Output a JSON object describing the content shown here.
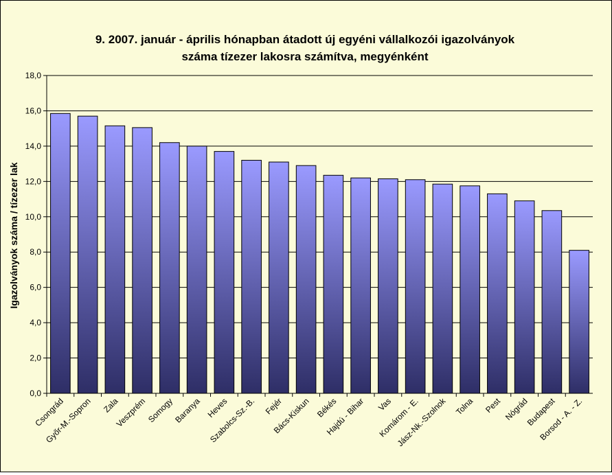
{
  "chart_data": {
    "type": "bar",
    "title_line1": "9.   2007. január - április hónapban átadott új egyéni vállalkozói  igazolványok",
    "title_line2": "száma tízezer lakosra számítva, megyénként",
    "xlabel": "",
    "ylabel": "Igazolványok száma / tízezer lak",
    "ylim": [
      0,
      18
    ],
    "ytick_step": 2,
    "ytick_labels": [
      "0,0",
      "2,0",
      "4,0",
      "6,0",
      "8,0",
      "10,0",
      "12,0",
      "14,0",
      "16,0",
      "18,0"
    ],
    "grid": true,
    "legend": "none",
    "bar_color_top": "#9a9aff",
    "bar_color_bottom": "#2e2e66",
    "plot_background": "#fbfbd9",
    "categories": [
      "Csongrád",
      "Győr-M.-Sopron",
      "Zala",
      "Veszprém",
      "Somogy",
      "Baranya",
      "Heves",
      "Szabolcs-Sz.-B.",
      "Fejér",
      "Bács-Kiskun",
      "Békés",
      "Hajdú - Bihar",
      "Vas",
      "Komárom - E.",
      "Jász-Nk.-Szolnok",
      "Tolna",
      "Pest",
      "Nógrád",
      "Budapest",
      "Borsod - A. - Z."
    ],
    "values": [
      15.85,
      15.7,
      15.15,
      15.05,
      14.2,
      14.0,
      13.7,
      13.2,
      13.1,
      12.9,
      12.35,
      12.2,
      12.15,
      12.1,
      11.85,
      11.75,
      11.3,
      10.9,
      10.35,
      8.1
    ]
  }
}
